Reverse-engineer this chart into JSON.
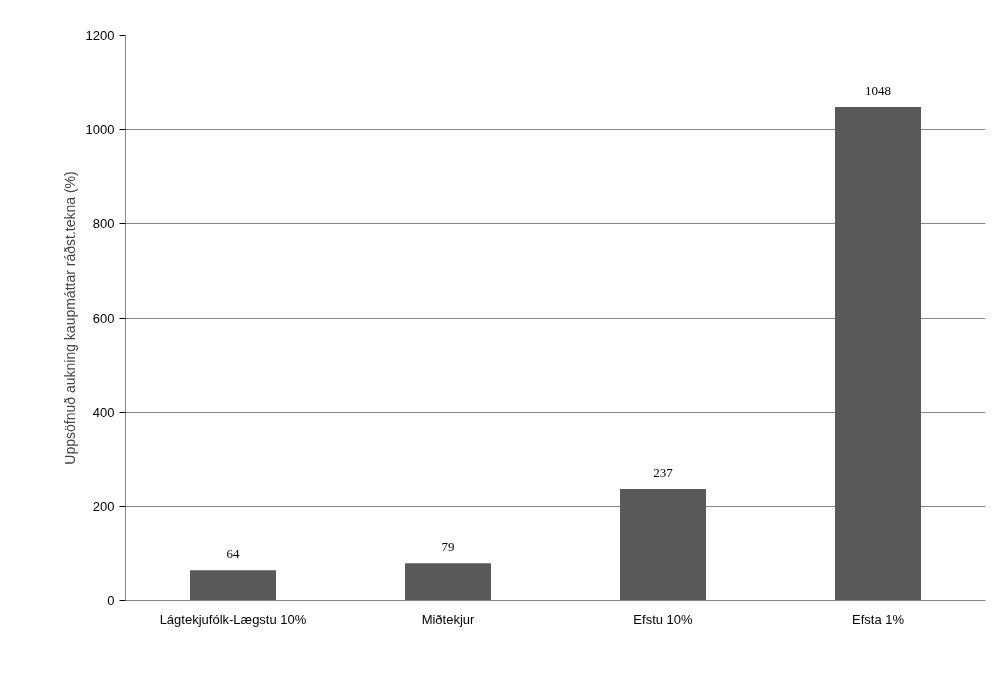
{
  "chart_data": {
    "type": "bar",
    "ylabel": "Uppsöfnuð aukning kaupmáttar ráðst.tekna (%)",
    "categories": [
      "Lágtekjufólk-Lægstu 10%",
      "Miðtekjur",
      "Efstu 10%",
      "Efsta 1%"
    ],
    "values": [
      64,
      79,
      237,
      1048
    ],
    "color": "#595959",
    "ylim": [
      0,
      1200
    ],
    "yticks": [
      0,
      200,
      400,
      600,
      800,
      1000,
      1200
    ],
    "grid": "y",
    "data_labels": true
  }
}
